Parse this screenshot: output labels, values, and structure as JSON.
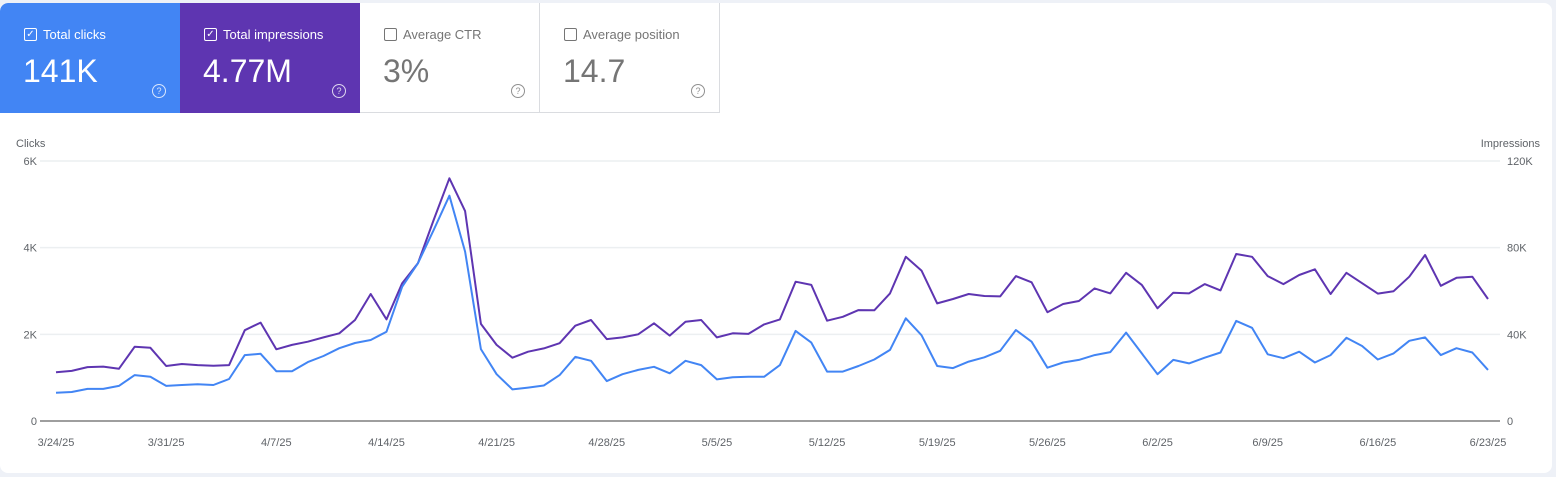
{
  "metrics": [
    {
      "label": "Total clicks",
      "value": "141K",
      "checked": true,
      "color": "#4285f4"
    },
    {
      "label": "Total impressions",
      "value": "4.77M",
      "checked": true,
      "color": "#5e35b1"
    },
    {
      "label": "Average CTR",
      "value": "3%",
      "checked": false
    },
    {
      "label": "Average position",
      "value": "14.7",
      "checked": false
    }
  ],
  "icons": {
    "checkbox_checked": "✓",
    "help": "?"
  },
  "chart_data": {
    "type": "line",
    "ylabel_left": "Clicks",
    "ylabel_right": "Impressions",
    "x_start": "2025-03-24",
    "x_end": "2025-06-23",
    "x_tick_labels": [
      "3/24/25",
      "3/31/25",
      "4/7/25",
      "4/14/25",
      "4/21/25",
      "4/28/25",
      "5/5/25",
      "5/12/25",
      "5/19/25",
      "5/26/25",
      "6/2/25",
      "6/9/25",
      "6/16/25",
      "6/23/25"
    ],
    "y_left": {
      "range": [
        0,
        6000
      ],
      "tick_labels": [
        "0",
        "2K",
        "4K",
        "6K"
      ]
    },
    "y_right": {
      "range": [
        0,
        120000
      ],
      "tick_labels": [
        "0",
        "40K",
        "80K",
        "120K"
      ]
    },
    "grid": true,
    "series": [
      {
        "name": "Clicks",
        "axis": "left",
        "color": "#4285f4",
        "values": [
          650,
          670,
          740,
          740,
          810,
          1060,
          1020,
          810,
          830,
          850,
          830,
          970,
          1520,
          1550,
          1150,
          1150,
          1360,
          1500,
          1680,
          1800,
          1870,
          2060,
          3100,
          3640,
          4410,
          5200,
          3910,
          1660,
          1080,
          730,
          770,
          820,
          1060,
          1480,
          1390,
          920,
          1080,
          1180,
          1250,
          1100,
          1390,
          1290,
          960,
          1010,
          1020,
          1020,
          1290,
          2080,
          1810,
          1140,
          1140,
          1270,
          1420,
          1640,
          2370,
          1980,
          1270,
          1220,
          1370,
          1470,
          1620,
          2100,
          1830,
          1230,
          1350,
          1410,
          1520,
          1590,
          2040,
          1560,
          1080,
          1410,
          1330,
          1460,
          1580,
          2310,
          2150,
          1540,
          1450,
          1600,
          1350,
          1520,
          1920,
          1730,
          1420,
          1560,
          1850,
          1930,
          1520,
          1680,
          1580,
          1180
        ]
      },
      {
        "name": "Impressions",
        "axis": "right",
        "color": "#5e35b1",
        "values": [
          22500,
          23100,
          24900,
          25100,
          24100,
          34300,
          33800,
          25400,
          26300,
          25800,
          25500,
          25800,
          41900,
          45400,
          33100,
          35100,
          36600,
          38600,
          40500,
          46600,
          58600,
          46900,
          63600,
          72800,
          92800,
          112000,
          96900,
          44800,
          35100,
          29200,
          32000,
          33500,
          35900,
          44000,
          46600,
          37800,
          38600,
          40000,
          45100,
          39400,
          45800,
          46600,
          38600,
          40500,
          40200,
          44600,
          46900,
          64300,
          62800,
          46300,
          48100,
          51200,
          51100,
          58900,
          75800,
          69400,
          54300,
          56300,
          58600,
          57700,
          57500,
          66900,
          64000,
          50200,
          54000,
          55400,
          61200,
          58900,
          68400,
          62800,
          52000,
          59200,
          58900,
          63200,
          60300,
          77100,
          75800,
          66900,
          63200,
          67400,
          70000,
          58600,
          68400,
          63600,
          58800,
          59900,
          66600,
          76600,
          62400,
          66100,
          66600,
          56300
        ]
      }
    ]
  }
}
